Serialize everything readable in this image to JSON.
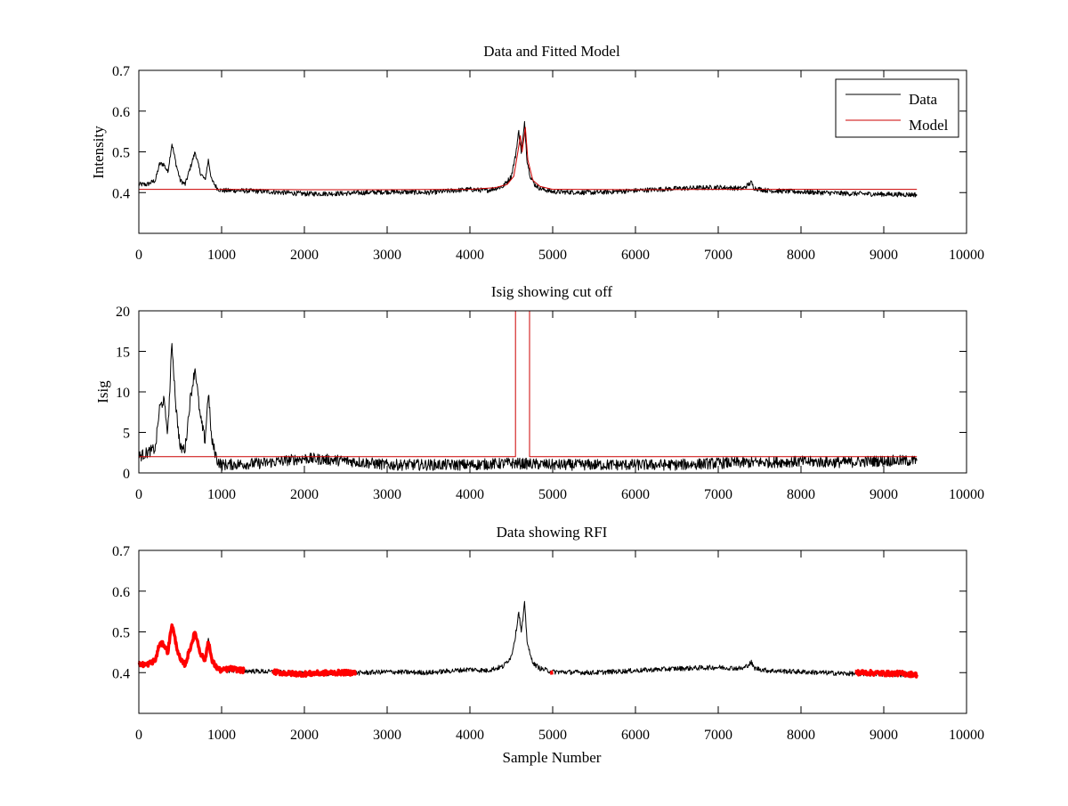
{
  "figure": {
    "xlabel": "Sample Number"
  },
  "colors": {
    "data": "#000000",
    "model": "#cc0000",
    "rfi": "#ff0000"
  },
  "chart_data": [
    {
      "type": "line",
      "title": "Data and Fitted Model",
      "xlabel": "",
      "ylabel": "Intensity",
      "xlim": [
        0,
        10000
      ],
      "ylim": [
        0.3,
        0.7
      ],
      "xticks": [
        0,
        1000,
        2000,
        3000,
        4000,
        5000,
        6000,
        7000,
        8000,
        9000,
        10000
      ],
      "yticks": [
        0.4,
        0.5,
        0.6,
        0.7
      ],
      "legend": {
        "position": "top-right",
        "entries": [
          "Data",
          "Model"
        ]
      },
      "series": [
        {
          "name": "Data",
          "color": "#000000",
          "x": [
            0,
            100,
            200,
            250,
            300,
            350,
            400,
            450,
            500,
            560,
            620,
            680,
            740,
            800,
            840,
            880,
            950,
            1000,
            1200,
            1500,
            2000,
            2500,
            3000,
            3500,
            4000,
            4200,
            4400,
            4500,
            4550,
            4590,
            4620,
            4640,
            4660,
            4690,
            4730,
            4780,
            4850,
            5000,
            5500,
            6000,
            6500,
            7000,
            7300,
            7400,
            7430,
            7460,
            7600,
            8000,
            8500,
            9000,
            9400
          ],
          "y": [
            0.42,
            0.42,
            0.43,
            0.47,
            0.47,
            0.45,
            0.52,
            0.47,
            0.43,
            0.42,
            0.46,
            0.5,
            0.45,
            0.43,
            0.48,
            0.43,
            0.41,
            0.405,
            0.405,
            0.403,
            0.397,
            0.398,
            0.402,
            0.4,
            0.408,
            0.405,
            0.415,
            0.44,
            0.49,
            0.55,
            0.5,
            0.53,
            0.57,
            0.48,
            0.44,
            0.42,
            0.41,
            0.402,
            0.4,
            0.405,
            0.41,
            0.413,
            0.41,
            0.425,
            0.412,
            0.41,
            0.405,
            0.402,
            0.398,
            0.396,
            0.395
          ]
        },
        {
          "name": "Model",
          "color": "#cc0000",
          "x": [
            0,
            1000,
            2000,
            3000,
            4000,
            4300,
            4450,
            4530,
            4580,
            4610,
            4630,
            4650,
            4670,
            4700,
            4760,
            4850,
            5000,
            6000,
            7000,
            8000,
            9400
          ],
          "y": [
            0.408,
            0.408,
            0.407,
            0.407,
            0.408,
            0.412,
            0.42,
            0.44,
            0.5,
            0.54,
            0.5,
            0.53,
            0.56,
            0.48,
            0.43,
            0.415,
            0.408,
            0.407,
            0.408,
            0.408,
            0.408
          ]
        }
      ]
    },
    {
      "type": "line",
      "title": "Isig showing cut off",
      "xlabel": "",
      "ylabel": "Isig",
      "xlim": [
        0,
        10000
      ],
      "ylim": [
        0,
        20
      ],
      "xticks": [
        0,
        1000,
        2000,
        3000,
        4000,
        5000,
        6000,
        7000,
        8000,
        9000,
        10000
      ],
      "yticks": [
        0,
        5,
        10,
        15,
        20
      ],
      "series": [
        {
          "name": "Isig",
          "color": "#000000",
          "x": [
            0,
            100,
            200,
            250,
            300,
            350,
            400,
            450,
            500,
            560,
            620,
            680,
            740,
            800,
            840,
            880,
            950,
            1000,
            1500,
            2000,
            2500,
            3000,
            3500,
            4000,
            4500,
            5000,
            5500,
            6000,
            6500,
            7000,
            7500,
            8000,
            8500,
            9000,
            9400
          ],
          "y": [
            2,
            2.5,
            3,
            8,
            9,
            5,
            16,
            8,
            3,
            3,
            9,
            13,
            7,
            4,
            10,
            4,
            1.5,
            1,
            1.2,
            1.8,
            1.5,
            1,
            1,
            1,
            1.2,
            1,
            1,
            1,
            1,
            1.2,
            1.3,
            1.4,
            1.3,
            1.5,
            1.5
          ]
        },
        {
          "name": "Cut off",
          "color": "#cc0000",
          "x": [
            0,
            4550,
            4550,
            4720,
            4720,
            9400
          ],
          "y": [
            2,
            2,
            20,
            20,
            2,
            2
          ]
        }
      ]
    },
    {
      "type": "line",
      "title": "Data showing RFI",
      "xlabel": "Sample Number",
      "ylabel": "",
      "xlim": [
        0,
        10000
      ],
      "ylim": [
        0.3,
        0.7
      ],
      "xticks": [
        0,
        1000,
        2000,
        3000,
        4000,
        5000,
        6000,
        7000,
        8000,
        9000,
        10000
      ],
      "yticks": [
        0.4,
        0.5,
        0.6,
        0.7
      ],
      "series": [
        {
          "name": "Data",
          "color": "#000000",
          "x": [
            0,
            100,
            200,
            250,
            300,
            350,
            400,
            450,
            500,
            560,
            620,
            680,
            740,
            800,
            840,
            880,
            950,
            1000,
            1200,
            1500,
            2000,
            2500,
            3000,
            3500,
            4000,
            4200,
            4400,
            4500,
            4550,
            4590,
            4620,
            4640,
            4660,
            4690,
            4730,
            4780,
            4850,
            5000,
            5500,
            6000,
            6500,
            7000,
            7300,
            7400,
            7430,
            7460,
            7600,
            8000,
            8500,
            9000,
            9400
          ],
          "y": [
            0.42,
            0.42,
            0.43,
            0.47,
            0.47,
            0.45,
            0.52,
            0.47,
            0.43,
            0.42,
            0.46,
            0.5,
            0.45,
            0.43,
            0.48,
            0.43,
            0.41,
            0.405,
            0.405,
            0.403,
            0.397,
            0.398,
            0.402,
            0.4,
            0.408,
            0.405,
            0.415,
            0.44,
            0.49,
            0.55,
            0.5,
            0.53,
            0.57,
            0.48,
            0.44,
            0.42,
            0.41,
            0.402,
            0.4,
            0.405,
            0.41,
            0.413,
            0.41,
            0.425,
            0.412,
            0.41,
            0.405,
            0.402,
            0.398,
            0.396,
            0.395
          ]
        },
        {
          "name": "RFI",
          "color": "#ff0000",
          "segments": [
            {
              "x": [
                0,
                100,
                200,
                250,
                300,
                350,
                400,
                450,
                500,
                560,
                620,
                680,
                740,
                800,
                840,
                880,
                950,
                1000,
                1100,
                1270
              ],
              "y": [
                0.42,
                0.42,
                0.43,
                0.47,
                0.47,
                0.45,
                0.52,
                0.47,
                0.43,
                0.42,
                0.46,
                0.5,
                0.45,
                0.43,
                0.48,
                0.43,
                0.41,
                0.405,
                0.41,
                0.405
              ]
            },
            {
              "x": [
                1620,
                1800,
                2000,
                2200,
                2400,
                2620
              ],
              "y": [
                0.402,
                0.398,
                0.397,
                0.399,
                0.4,
                0.4
              ]
            },
            {
              "x": [
                4980,
                4990
              ],
              "y": [
                0.405,
                0.395
              ]
            },
            {
              "x": [
                8660,
                8800,
                9000,
                9200,
                9400
              ],
              "y": [
                0.4,
                0.4,
                0.398,
                0.398,
                0.395
              ]
            }
          ]
        }
      ]
    }
  ]
}
